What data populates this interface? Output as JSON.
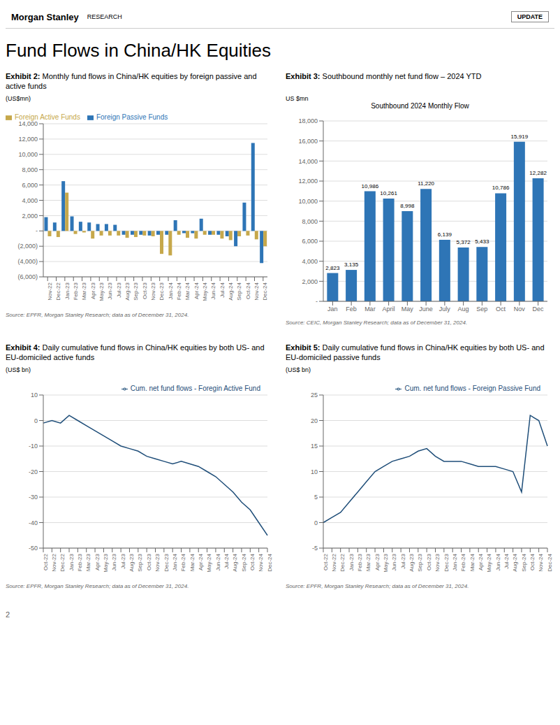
{
  "title": "Fund Flows in China/HK Equities",
  "annotations": [
    "Morgan Stanley",
    "RESEARCH",
    "UPDATE",
    "2"
  ],
  "chart_data": [
    {
      "type": "bar",
      "title": "Exhibit 2:",
      "subtitle": "Monthly fund flows in China/HK equities by foreign passive and active funds",
      "ylabel": "(US$mn)",
      "annotations": [
        "Source: EPFR, Morgan Stanley Research; data as of December 31, 2024."
      ],
      "categories": [
        "Nov-22",
        "Dec-22",
        "Jan-23",
        "Feb-23",
        "Mar-23",
        "Apr-23",
        "May-23",
        "Jun-23",
        "Jul-23",
        "Aug-23",
        "Sep-23",
        "Oct-23",
        "Nov-23",
        "Dec-23",
        "Jan-24",
        "Feb-24",
        "Mar-24",
        "Apr-24",
        "May-24",
        "Jun-24",
        "Jul-24",
        "Aug-24",
        "Sep-24",
        "Oct-24",
        "Nov-24",
        "Dec-24"
      ],
      "series": [
        {
          "name": "Foreign Passive Funds",
          "color": "#2E75B6",
          "values": [
            1800,
            1100,
            6500,
            1900,
            1200,
            1100,
            900,
            900,
            800,
            -500,
            -500,
            -500,
            -600,
            -500,
            -500,
            1400,
            -300,
            -300,
            1600,
            -500,
            -500,
            -700,
            -2000,
            3700,
            11500,
            -4200
          ]
        },
        {
          "name": "Foreign Active Funds",
          "color": "#C6A84B",
          "values": [
            -700,
            -800,
            5000,
            -400,
            -200,
            -1000,
            -600,
            -600,
            -600,
            -900,
            -800,
            -600,
            -700,
            -3000,
            -3200,
            -500,
            -900,
            -1000,
            -500,
            -500,
            -1000,
            -1200,
            -700,
            -600,
            -1100,
            -2000
          ]
        }
      ],
      "ylim": [
        -6000,
        14000
      ],
      "yticks": [
        {
          "value": -6000,
          "label": "(6,000)"
        },
        {
          "value": -4000,
          "label": "(4,000)"
        },
        {
          "value": -2000,
          "label": "(2,000)"
        },
        {
          "value": 0,
          "label": "-"
        },
        {
          "value": 2000,
          "label": "2,000"
        },
        {
          "value": 4000,
          "label": "4,000"
        },
        {
          "value": 6000,
          "label": "6,000"
        },
        {
          "value": 8000,
          "label": "8,000"
        },
        {
          "value": 10000,
          "label": "10,000"
        },
        {
          "value": 12000,
          "label": "12,000"
        },
        {
          "value": 14000,
          "label": "14,000"
        }
      ],
      "grid": true,
      "legend": "top-left"
    },
    {
      "type": "bar",
      "title": "Exhibit 3:",
      "subtitle": "Southbound monthly net fund flow – 2024 YTD",
      "ylabel": "US $mn",
      "annotations": [
        "Southbound 2024 Monthly Flow",
        "Source: CEIC, Morgan Stanley Research; data as of December 31, 2024."
      ],
      "categories": [
        "Jan",
        "Feb",
        "Mar",
        "April",
        "May",
        "June",
        "July",
        "Aug",
        "Sep",
        "Oct",
        "Nov",
        "Dec"
      ],
      "values": [
        2823,
        3135,
        10986,
        10261,
        8998,
        11220,
        6139,
        5372,
        5433,
        10786,
        15919,
        12282
      ],
      "value_labels": [
        "2,823",
        "3,135",
        "10,986",
        "10,261",
        "8,998",
        "11,220",
        "6,139",
        "5,372",
        "5,433",
        "10,786",
        "15,919",
        "12,282"
      ],
      "data_labels": true,
      "color": "#2E75B6",
      "ylim": [
        0,
        18000
      ],
      "yticks": [
        {
          "value": 0,
          "label": "-"
        },
        {
          "value": 2000,
          "label": "2,000"
        },
        {
          "value": 4000,
          "label": "4,000"
        },
        {
          "value": 6000,
          "label": "6,000"
        },
        {
          "value": 8000,
          "label": "8,000"
        },
        {
          "value": 10000,
          "label": "10,000"
        },
        {
          "value": 12000,
          "label": "12,000"
        },
        {
          "value": 14000,
          "label": "14,000"
        },
        {
          "value": 16000,
          "label": "16,000"
        },
        {
          "value": 18000,
          "label": "18,000"
        }
      ],
      "grid": true
    },
    {
      "type": "line",
      "title": "Exhibit 4:",
      "subtitle": "Daily cumulative fund flows in China/HK equities by both US- and EU-domiciled active funds",
      "ylabel": "(US$ bn)",
      "annotations": [
        "Source: EPFR, Morgan Stanley Research; data as of December 31, 2024."
      ],
      "categories": [
        "Oct-22",
        "Nov-22",
        "Dec-22",
        "Jan-23",
        "Feb-23",
        "Mar-23",
        "Apr-23",
        "May-23",
        "Jun-23",
        "Jul-23",
        "Aug-23",
        "Sep-23",
        "Oct-23",
        "Nov-23",
        "Dec-23",
        "Jan-24",
        "Feb-24",
        "Mar-24",
        "Apr-24",
        "May-24",
        "Jun-24",
        "Jul-24",
        "Aug-24",
        "Sep-24",
        "Oct-24",
        "Nov-24",
        "Dec-24"
      ],
      "series": [
        {
          "name": "Cum. net fund flows  - Foregin Active Fund",
          "color": "#1F4E79",
          "values": [
            -1,
            0,
            -1,
            2,
            0,
            -2,
            -4,
            -6,
            -8,
            -10,
            -11,
            -12,
            -14,
            -15,
            -16,
            -17,
            -16,
            -17,
            -18,
            -20,
            -22,
            -25,
            -28,
            -32,
            -35,
            -40,
            -45
          ]
        }
      ],
      "ylim": [
        -50,
        10
      ],
      "yticks": [
        -50,
        -40,
        -30,
        -20,
        -10,
        0,
        10
      ],
      "grid": true,
      "legend": "top-right"
    },
    {
      "type": "line",
      "title": "Exhibit 5:",
      "subtitle": "Daily cumulative fund flows in China/HK equities by both US- and EU-domiciled passive funds",
      "ylabel": "(US$ bn)",
      "annotations": [
        "Source: EPFR, Morgan Stanley Research; data as of December 31, 2024."
      ],
      "categories": [
        "Oct-22",
        "Nov-22",
        "Dec-22",
        "Jan-23",
        "Feb-23",
        "Mar-23",
        "Apr-23",
        "May-23",
        "Jun-23",
        "Jul-23",
        "Aug-23",
        "Sep-23",
        "Oct-23",
        "Nov-23",
        "Dec-23",
        "Jan-24",
        "Feb-24",
        "Mar-24",
        "Apr-24",
        "May-24",
        "Jun-24",
        "Jul-24",
        "Aug-24",
        "Sep-24",
        "Oct-24",
        "Nov-24",
        "Dec-24"
      ],
      "series": [
        {
          "name": "Cum. net fund flows  - Foreign Passive Fund",
          "color": "#1F4E79",
          "values": [
            0,
            1,
            2,
            4,
            6,
            8,
            10,
            11,
            12,
            12.5,
            13,
            14,
            14.5,
            13,
            12,
            12,
            12,
            11.5,
            11,
            11,
            11,
            10.5,
            10,
            6,
            21,
            20,
            15
          ]
        }
      ],
      "ylim": [
        -5,
        25
      ],
      "yticks": [
        -5,
        0,
        5,
        10,
        15,
        20,
        25
      ],
      "grid": true,
      "legend": "top-right"
    }
  ]
}
